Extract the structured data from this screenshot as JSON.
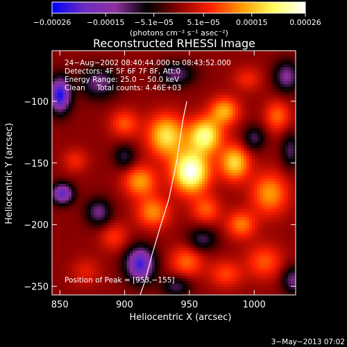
{
  "chart_data": {
    "type": "heatmap",
    "title": "Reconstructed RHESSI Image",
    "xlabel": "Heliocentric X (arcsec)",
    "ylabel": "Heliocentric Y (arcsec)",
    "xlim": [
      844,
      1032
    ],
    "ylim": [
      -257,
      -59
    ],
    "x_ticks": [
      850,
      900,
      950,
      1000
    ],
    "y_ticks": [
      -250,
      -200,
      -150,
      -100
    ],
    "x_tick_labels": [
      "850",
      "900",
      "950",
      "1000"
    ],
    "y_tick_labels": [
      "−250",
      "−200",
      "−150",
      "−100"
    ],
    "grid": false,
    "colorbar": {
      "range": [
        -0.00026,
        0.00026
      ],
      "tick_values": [
        -0.00026,
        -0.00015,
        -5.1e-05,
        5.1e-05,
        0.00015,
        0.00026
      ],
      "tick_labels": [
        "−0.00026",
        "−0.00015",
        "−5.1e−05",
        "5.1e−05",
        "0.00015",
        "0.00026"
      ],
      "unit_label": "(photons cm⁻² s⁻¹ asec⁻²)",
      "colormap": [
        "#0000ff",
        "#6a2cc0",
        "#9030a0",
        "#000000",
        "#8a0000",
        "#ff2000",
        "#ff9a00",
        "#ffff60",
        "#ffffff"
      ]
    },
    "annotations": {
      "time": "24−Aug−2002 08:40:44.000 to 08:43:52.000",
      "detectors": "Detectors: 4F 5F 6F 7F 8F, Att:0",
      "energy": "Energy Range: 25.0 − 50.0 keV",
      "method": "Clean     Total counts: 4.46E+03",
      "peak": "Position of Peak = [953,−155]"
    },
    "peak": [
      953,
      -155
    ],
    "sources": [
      {
        "x": 951,
        "y": -157,
        "value": 0.00026,
        "sx": 10,
        "sy": 12
      },
      {
        "x": 962,
        "y": -128,
        "value": 0.00021,
        "sx": 9,
        "sy": 10
      },
      {
        "x": 932,
        "y": -128,
        "value": 0.00018,
        "sx": 10,
        "sy": 12
      },
      {
        "x": 985,
        "y": -150,
        "value": 0.00017,
        "sx": 8,
        "sy": 10
      },
      {
        "x": 912,
        "y": -165,
        "value": 0.00013,
        "sx": 9,
        "sy": 9
      },
      {
        "x": 922,
        "y": -190,
        "value": 0.00012,
        "sx": 9,
        "sy": 9
      },
      {
        "x": 977,
        "y": -108,
        "value": 0.00014,
        "sx": 8,
        "sy": 8
      },
      {
        "x": 1012,
        "y": -175,
        "value": 0.00013,
        "sx": 10,
        "sy": 12
      },
      {
        "x": 990,
        "y": -200,
        "value": 0.00011,
        "sx": 8,
        "sy": 8
      },
      {
        "x": 1008,
        "y": -230,
        "value": 9e-05,
        "sx": 10,
        "sy": 10
      },
      {
        "x": 948,
        "y": -230,
        "value": 0.0001,
        "sx": 9,
        "sy": 9
      },
      {
        "x": 978,
        "y": -240,
        "value": 8e-05,
        "sx": 9,
        "sy": 8
      },
      {
        "x": 1018,
        "y": -112,
        "value": 0.0001,
        "sx": 7,
        "sy": 9
      },
      {
        "x": 900,
        "y": -118,
        "value": 9e-05,
        "sx": 8,
        "sy": 8
      },
      {
        "x": 892,
        "y": -210,
        "value": 7e-05,
        "sx": 8,
        "sy": 8
      },
      {
        "x": 963,
        "y": -188,
        "value": 9e-05,
        "sx": 8,
        "sy": 8
      },
      {
        "x": 862,
        "y": -148,
        "value": 6e-05,
        "sx": 7,
        "sy": 7
      },
      {
        "x": 995,
        "y": -82,
        "value": 6e-05,
        "sx": 8,
        "sy": 7
      },
      {
        "x": 870,
        "y": -238,
        "value": 5e-05,
        "sx": 8,
        "sy": 8
      },
      {
        "x": 850,
        "y": -95,
        "value": -0.00024,
        "sx": 6,
        "sy": 10
      },
      {
        "x": 852,
        "y": -175,
        "value": -0.0002,
        "sx": 6,
        "sy": 6
      },
      {
        "x": 912,
        "y": -232,
        "value": -0.00022,
        "sx": 8,
        "sy": 10
      },
      {
        "x": 880,
        "y": -85,
        "value": -0.00012,
        "sx": 10,
        "sy": 9
      },
      {
        "x": 1025,
        "y": -80,
        "value": -0.00013,
        "sx": 7,
        "sy": 9
      },
      {
        "x": 1028,
        "y": -140,
        "value": -0.0001,
        "sx": 5,
        "sy": 10
      },
      {
        "x": 940,
        "y": -78,
        "value": -0.00011,
        "sx": 10,
        "sy": 7
      },
      {
        "x": 880,
        "y": -190,
        "value": -0.00012,
        "sx": 7,
        "sy": 8
      },
      {
        "x": 960,
        "y": -212,
        "value": -0.0001,
        "sx": 8,
        "sy": 7
      },
      {
        "x": 1030,
        "y": -245,
        "value": -0.00012,
        "sx": 6,
        "sy": 8
      },
      {
        "x": 1000,
        "y": -130,
        "value": -0.0001,
        "sx": 6,
        "sy": 7
      },
      {
        "x": 940,
        "y": -250,
        "value": -0.0001,
        "sx": 8,
        "sy": 6
      },
      {
        "x": 900,
        "y": -145,
        "value": -9e-05,
        "sx": 6,
        "sy": 7
      }
    ],
    "limb_curve": [
      [
        948,
        -100
      ],
      [
        945,
        -115
      ],
      [
        940,
        -150
      ],
      [
        934,
        -180
      ],
      [
        928,
        -200
      ],
      [
        921,
        -225
      ],
      [
        916,
        -245
      ],
      [
        912,
        -257
      ]
    ]
  },
  "footer": {
    "timestamp": "3−May−2013 07:02"
  }
}
